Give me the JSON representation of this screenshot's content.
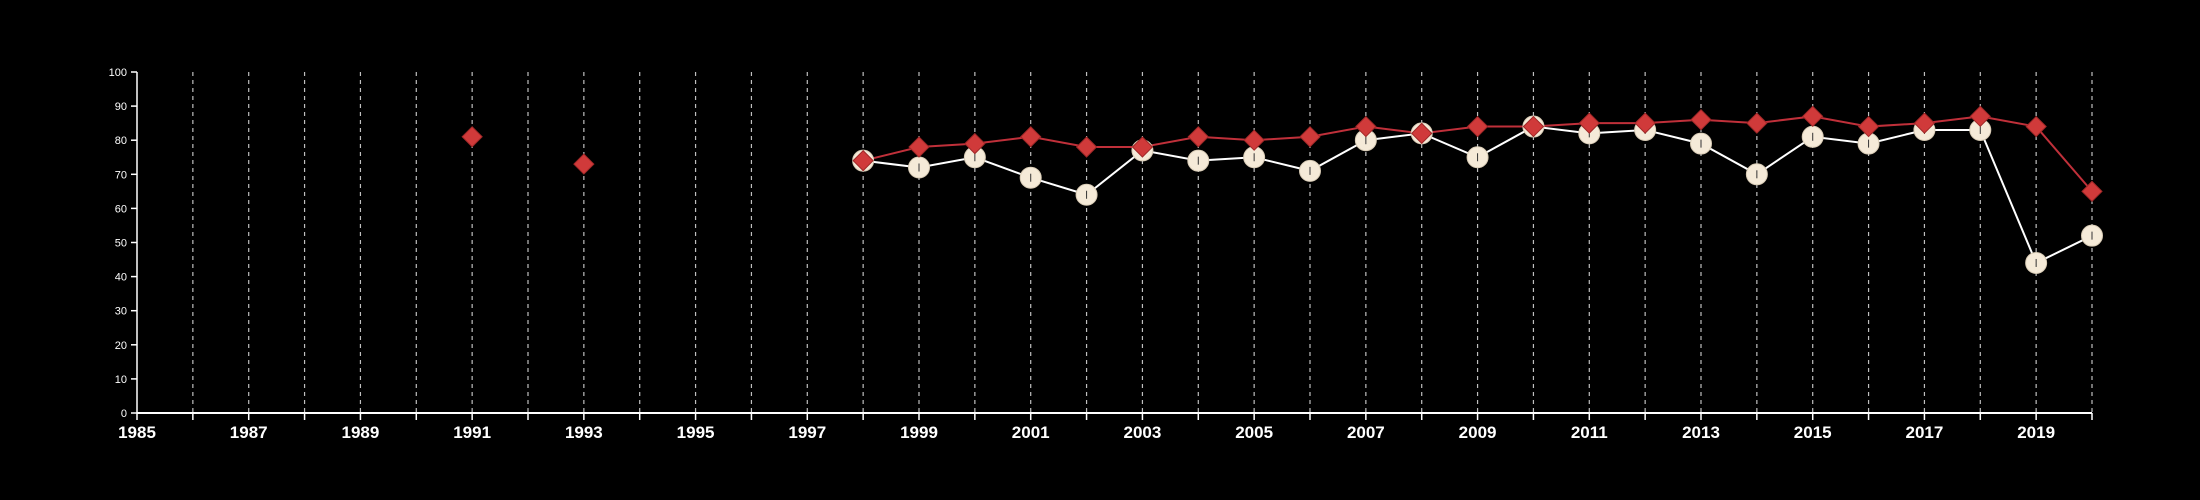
{
  "chart_data": {
    "type": "line",
    "title": "",
    "xlabel": "",
    "ylabel": "",
    "xlim": [
      1985,
      2020
    ],
    "ylim": [
      0,
      100
    ],
    "x_ticks": [
      1985,
      1987,
      1989,
      1991,
      1993,
      1995,
      1997,
      1999,
      2001,
      2003,
      2005,
      2007,
      2009,
      2011,
      2013,
      2015,
      2017,
      2019
    ],
    "y_ticks": [
      0,
      10,
      20,
      30,
      40,
      50,
      60,
      70,
      80,
      90,
      100
    ],
    "grid": "vertical dashed lines at every year",
    "legend": "none",
    "series": [
      {
        "marker": "circle",
        "color": "#f5ead8",
        "line_color": "#ffffff",
        "points": [
          [
            1998,
            74
          ],
          [
            1999,
            72
          ],
          [
            2000,
            75
          ],
          [
            2001,
            69
          ],
          [
            2002,
            64
          ],
          [
            2003,
            77
          ],
          [
            2004,
            74
          ],
          [
            2005,
            75
          ],
          [
            2006,
            71
          ],
          [
            2007,
            80
          ],
          [
            2008,
            82
          ],
          [
            2009,
            75
          ],
          [
            2010,
            84
          ],
          [
            2011,
            82
          ],
          [
            2012,
            83
          ],
          [
            2013,
            79
          ],
          [
            2014,
            70
          ],
          [
            2015,
            81
          ],
          [
            2016,
            79
          ],
          [
            2017,
            83
          ],
          [
            2018,
            83
          ],
          [
            2019,
            44
          ],
          [
            2020,
            52
          ]
        ]
      },
      {
        "marker": "diamond",
        "color": "#d03a3a",
        "line_color": "#c0303a",
        "points": [
          [
            1991,
            81
          ],
          [
            1993,
            73
          ],
          [
            1998,
            74
          ],
          [
            1999,
            78
          ],
          [
            2000,
            79
          ],
          [
            2001,
            81
          ],
          [
            2002,
            78
          ],
          [
            2003,
            78
          ],
          [
            2004,
            81
          ],
          [
            2005,
            80
          ],
          [
            2006,
            81
          ],
          [
            2007,
            84
          ],
          [
            2008,
            82
          ],
          [
            2009,
            84
          ],
          [
            2010,
            84
          ],
          [
            2011,
            85
          ],
          [
            2012,
            85
          ],
          [
            2013,
            86
          ],
          [
            2014,
            85
          ],
          [
            2015,
            87
          ],
          [
            2016,
            84
          ],
          [
            2017,
            85
          ],
          [
            2018,
            87
          ],
          [
            2019,
            84
          ],
          [
            2020,
            65
          ]
        ]
      }
    ]
  }
}
